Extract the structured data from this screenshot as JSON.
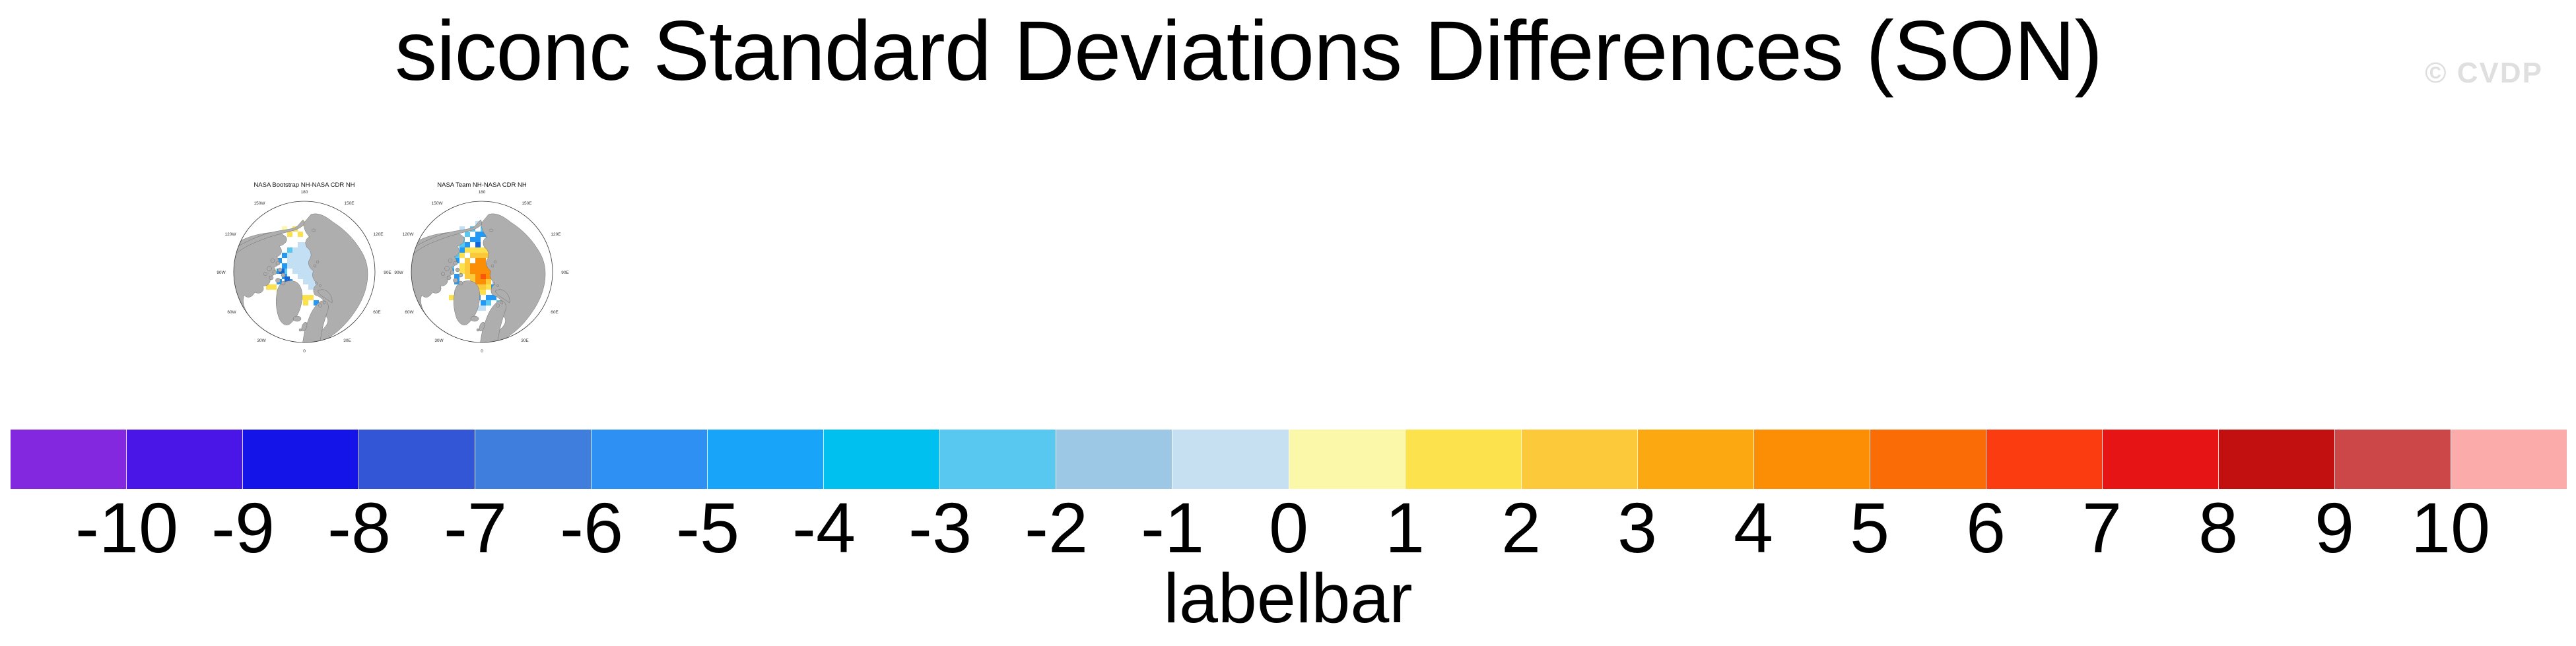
{
  "figure": {
    "title": "siconc Standard Deviations Differences (SON)",
    "watermark": "© CVDP"
  },
  "chart_data": {
    "type": "heatmap",
    "variable": "siconc",
    "statistic": "Standard Deviations Differences",
    "season": "SON",
    "projection": "Northern Hemisphere polar stereographic",
    "colorbar": {
      "label": "labelbar",
      "ticks": [
        -10,
        -9,
        -8,
        -7,
        -6,
        -5,
        -4,
        -3,
        -2,
        -1,
        0,
        1,
        2,
        3,
        4,
        5,
        6,
        7,
        8,
        9,
        10
      ],
      "colors": [
        "#8428E0",
        "#4A16E8",
        "#1414E8",
        "#3356D6",
        "#3F7EDC",
        "#2E90F2",
        "#18A4F8",
        "#00C0F0",
        "#58C8F0",
        "#9CC8E6",
        "#C6E0F2",
        "#FBF8AA",
        "#FCE24D",
        "#FCC93A",
        "#FCA911",
        "#FB8E05",
        "#FA6C05",
        "#FA3C10",
        "#E61414",
        "#C21010",
        "#CC4747",
        "#FCABAB"
      ]
    },
    "palette": {
      "lb": "#C2DFF3",
      "cy": "#58C8F0",
      "mb": "#2299F5",
      "db": "#1565D8",
      "py": "#FBF8AA",
      "yl": "#FCE14D",
      "am": "#FCC93A",
      "or": "#FCA911",
      "do": "#FB8E05",
      "ro": "#F9560A"
    },
    "panels": [
      {
        "title": "NASA Bootstrap NH-NASA CDR NH",
        "lon_labels": [
          "180",
          "150W",
          "150E",
          "120W",
          "120E",
          "90W",
          "90E",
          "60W",
          "60E",
          "30W",
          "30E",
          "0"
        ],
        "cells": {
          "lb": [
            [
              128,
              80
            ],
            [
              136,
              80
            ],
            [
              144,
              80
            ],
            [
              152,
              80
            ],
            [
              120,
              88
            ],
            [
              128,
              88
            ],
            [
              136,
              88
            ],
            [
              144,
              88
            ],
            [
              152,
              88
            ],
            [
              160,
              88
            ],
            [
              112,
              96
            ],
            [
              120,
              96
            ],
            [
              128,
              96
            ],
            [
              136,
              96
            ],
            [
              144,
              96
            ],
            [
              152,
              96
            ],
            [
              160,
              96
            ],
            [
              112,
              104
            ],
            [
              120,
              104
            ],
            [
              128,
              104
            ],
            [
              136,
              104
            ],
            [
              144,
              104
            ],
            [
              152,
              104
            ],
            [
              160,
              104
            ],
            [
              168,
              104
            ],
            [
              176,
              104
            ],
            [
              112,
              112
            ],
            [
              120,
              112
            ],
            [
              128,
              112
            ],
            [
              136,
              112
            ],
            [
              144,
              112
            ],
            [
              152,
              112
            ],
            [
              160,
              112
            ],
            [
              168,
              112
            ],
            [
              120,
              120
            ],
            [
              128,
              120
            ],
            [
              136,
              120
            ],
            [
              144,
              120
            ],
            [
              152,
              120
            ],
            [
              160,
              120
            ],
            [
              168,
              120
            ],
            [
              176,
              120
            ],
            [
              128,
              128
            ],
            [
              136,
              128
            ],
            [
              144,
              128
            ],
            [
              152,
              128
            ],
            [
              160,
              128
            ],
            [
              136,
              136
            ],
            [
              144,
              136
            ],
            [
              152,
              136
            ],
            [
              144,
              144
            ],
            [
              152,
              144
            ]
          ],
          "cy": [
            [
              112,
              88
            ],
            [
              104,
              120
            ]
          ],
          "mb": [
            [
              104,
              96
            ],
            [
              96,
              104
            ],
            [
              104,
              112
            ],
            [
              96,
              120
            ],
            [
              104,
              128
            ],
            [
              112,
              136
            ],
            [
              168,
              88
            ],
            [
              176,
              112
            ],
            [
              184,
              124
            ],
            [
              160,
              144
            ],
            [
              152,
              168
            ],
            [
              96,
              136
            ]
          ],
          "db": [
            [
              100,
              120
            ],
            [
              164,
              84
            ],
            [
              108,
              132
            ]
          ],
          "yl": [
            [
              120,
              56
            ],
            [
              136,
              48
            ],
            [
              112,
              64
            ],
            [
              128,
              64
            ],
            [
              144,
              64
            ],
            [
              184,
              64
            ],
            [
              192,
              64
            ],
            [
              184,
              72
            ],
            [
              56,
              112
            ],
            [
              64,
              112
            ],
            [
              48,
              120
            ],
            [
              56,
              120
            ],
            [
              64,
              120
            ],
            [
              72,
              120
            ],
            [
              48,
              128
            ],
            [
              56,
              128
            ],
            [
              72,
              128
            ],
            [
              80,
              128
            ],
            [
              72,
              136
            ],
            [
              80,
              144
            ],
            [
              88,
              144
            ],
            [
              96,
              152
            ],
            [
              104,
              152
            ],
            [
              120,
              152
            ],
            [
              112,
              160
            ],
            [
              128,
              160
            ],
            [
              136,
              160
            ],
            [
              120,
              168
            ],
            [
              136,
              168
            ],
            [
              168,
              96
            ],
            [
              176,
              128
            ],
            [
              176,
              136
            ],
            [
              144,
              160
            ]
          ],
          "or": [
            [
              60,
              126
            ]
          ],
          "py": [
            [
              152,
              56
            ],
            [
              104,
              56
            ],
            [
              88,
              120
            ],
            [
              112,
              148
            ]
          ]
        }
      },
      {
        "title": "NASA Team NH-NASA CDR NH",
        "lon_labels": [
          "180",
          "150W",
          "150E",
          "120W",
          "120E",
          "90W",
          "90E",
          "60W",
          "60E",
          "30W",
          "30E",
          "0"
        ],
        "cells": {
          "lb": [
            [
              128,
              48
            ],
            [
              144,
              48
            ],
            [
              104,
              56
            ],
            [
              160,
              56
            ],
            [
              96,
              64
            ],
            [
              168,
              64
            ],
            [
              88,
              72
            ],
            [
              176,
              72
            ],
            [
              96,
              80
            ],
            [
              168,
              80
            ],
            [
              184,
              104
            ],
            [
              192,
              112
            ],
            [
              104,
              144
            ],
            [
              96,
              152
            ],
            [
              112,
              176
            ],
            [
              120,
              176
            ],
            [
              128,
              176
            ],
            [
              136,
              176
            ],
            [
              104,
              160
            ]
          ],
          "cy": [
            [
              120,
              56
            ],
            [
              136,
              56
            ],
            [
              112,
              64
            ],
            [
              144,
              64
            ],
            [
              104,
              72
            ],
            [
              152,
              72
            ],
            [
              96,
              96
            ],
            [
              176,
              104
            ],
            [
              184,
              120
            ],
            [
              176,
              144
            ],
            [
              160,
              168
            ],
            [
              144,
              168
            ],
            [
              104,
              80
            ],
            [
              88,
              112
            ],
            [
              72,
              120
            ],
            [
              56,
              120
            ],
            [
              184,
              112
            ]
          ],
          "mb": [
            [
              128,
              64
            ],
            [
              136,
              64
            ],
            [
              120,
              72
            ],
            [
              128,
              72
            ],
            [
              144,
              72
            ],
            [
              112,
              80
            ],
            [
              152,
              80
            ],
            [
              160,
              88
            ],
            [
              168,
              96
            ],
            [
              168,
              112
            ],
            [
              176,
              120
            ],
            [
              168,
              128
            ],
            [
              176,
              136
            ],
            [
              168,
              144
            ],
            [
              160,
              152
            ],
            [
              152,
              160
            ],
            [
              144,
              160
            ],
            [
              128,
              160
            ],
            [
              120,
              160
            ],
            [
              112,
              168
            ],
            [
              136,
              168
            ],
            [
              96,
              128
            ],
            [
              88,
              120
            ],
            [
              80,
              128
            ],
            [
              96,
              136
            ],
            [
              152,
              144
            ],
            [
              160,
              136
            ],
            [
              104,
              88
            ],
            [
              96,
              104
            ],
            [
              112,
              160
            ]
          ],
          "db": [
            [
              128,
              80
            ],
            [
              160,
              120
            ]
          ],
          "yl": [
            [
              112,
              88
            ],
            [
              120,
              88
            ],
            [
              128,
              88
            ],
            [
              136,
              88
            ],
            [
              144,
              88
            ],
            [
              152,
              88
            ],
            [
              104,
              96
            ],
            [
              152,
              96
            ],
            [
              160,
              104
            ],
            [
              160,
              112
            ],
            [
              104,
              112
            ],
            [
              104,
              120
            ],
            [
              128,
              152
            ],
            [
              136,
              152
            ],
            [
              176,
              64
            ],
            [
              88,
              160
            ],
            [
              96,
              160
            ],
            [
              96,
              168
            ],
            [
              168,
              160
            ],
            [
              144,
              144
            ],
            [
              64,
              128
            ]
          ],
          "am": [
            [
              120,
              96
            ],
            [
              128,
              96
            ],
            [
              136,
              96
            ],
            [
              144,
              96
            ],
            [
              112,
              104
            ],
            [
              152,
              104
            ],
            [
              112,
              112
            ],
            [
              152,
              112
            ],
            [
              112,
              120
            ],
            [
              152,
              120
            ],
            [
              112,
              128
            ],
            [
              120,
              128
            ],
            [
              120,
              136
            ],
            [
              144,
              136
            ],
            [
              128,
              144
            ],
            [
              136,
              144
            ],
            [
              120,
              144
            ]
          ],
          "do": [
            [
              128,
              104
            ],
            [
              136,
              104
            ],
            [
              120,
              112
            ],
            [
              128,
              112
            ],
            [
              136,
              112
            ],
            [
              144,
              112
            ],
            [
              120,
              120
            ],
            [
              128,
              120
            ],
            [
              136,
              120
            ],
            [
              144,
              120
            ],
            [
              128,
              128
            ],
            [
              144,
              128
            ],
            [
              128,
              136
            ],
            [
              136,
              136
            ]
          ],
          "ro": [
            [
              136,
              128
            ]
          ]
        }
      }
    ]
  }
}
